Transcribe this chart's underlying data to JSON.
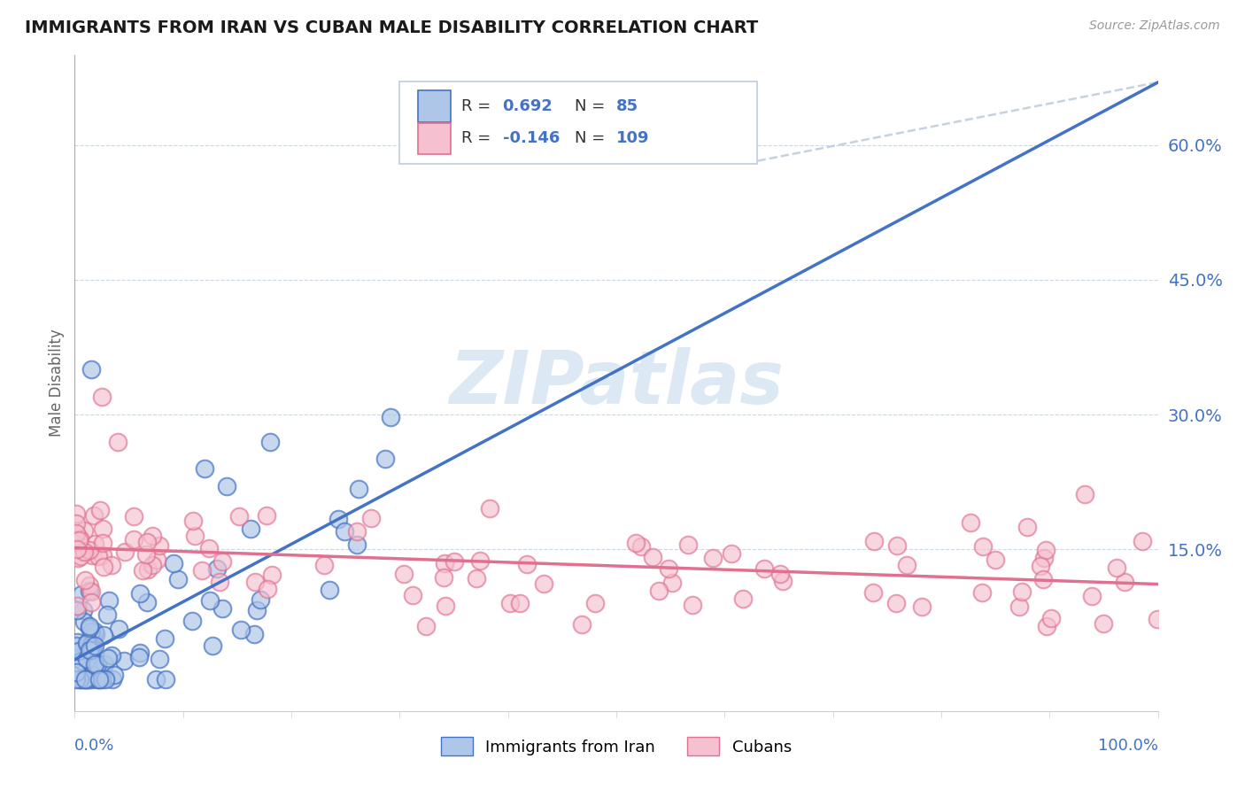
{
  "title": "IMMIGRANTS FROM IRAN VS CUBAN MALE DISABILITY CORRELATION CHART",
  "source_text": "Source: ZipAtlas.com",
  "ylabel": "Male Disability",
  "xlim": [
    0.0,
    1.0
  ],
  "ylim": [
    -0.03,
    0.7
  ],
  "yaxis_ticks": [
    0.15,
    0.3,
    0.45,
    0.6
  ],
  "yaxis_labels": [
    "15.0%",
    "30.0%",
    "45.0%",
    "60.0%"
  ],
  "color_iran_fill": "#aec6e8",
  "color_iran_edge": "#4472c4",
  "color_cuba_fill": "#f5c0cf",
  "color_cuba_edge": "#e07090",
  "color_iran_line": "#4472c4",
  "color_cuba_line": "#e07090",
  "color_ref_line": "#b8c8d8",
  "background_color": "#ffffff",
  "grid_color": "#c8d4e0",
  "title_color": "#1a1a1a",
  "axis_label_color": "#4472c4",
  "legend_text_color": "#4472c4",
  "watermark_text": "ZIPatlas",
  "watermark_color": "#dce8f4",
  "scatter_size": 200,
  "iran_R": 0.692,
  "iran_N": 85,
  "cuba_R": -0.146,
  "cuba_N": 109,
  "ref_line_start_x": 0.62,
  "ref_line_start_y": 0.58,
  "ref_line_end_x": 1.0,
  "ref_line_end_y": 0.67
}
